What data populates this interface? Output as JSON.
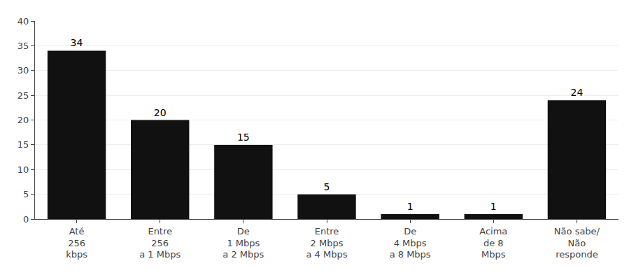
{
  "chart_data": {
    "type": "bar",
    "categories": [
      "Até\n256\nkbps",
      "Entre\n256\na 1 Mbps",
      "De\n1 Mbps\na 2 Mbps",
      "Entre\n2 Mbps\na 4 Mbps",
      "De\n4 Mbps\na 8 Mbps",
      "Acima\nde 8\nMbps",
      "Não sabe/\nNão\nresponde"
    ],
    "values": [
      34,
      20,
      15,
      5,
      1,
      1,
      24
    ],
    "color": "#111111",
    "ylim": [
      0,
      40
    ],
    "yticks": [
      0,
      5,
      10,
      15,
      20,
      25,
      30,
      35,
      40
    ],
    "grid": true,
    "data_labels": true
  }
}
